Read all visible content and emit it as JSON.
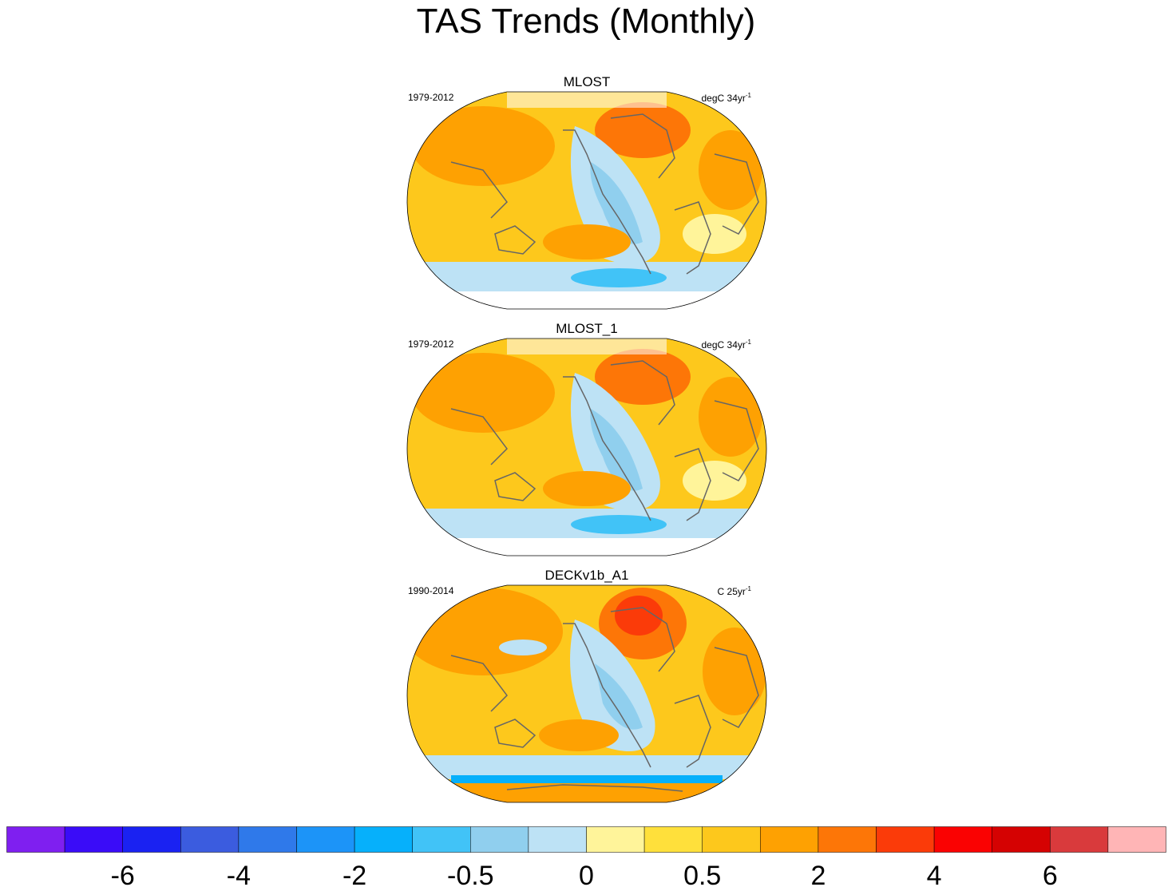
{
  "chart_data": {
    "type": "heatmap",
    "title": "TAS Trends (Monthly)",
    "projection": "Robinson (global)",
    "panels": [
      {
        "name": "MLOST",
        "period": "1979-2012",
        "units": "degC 34yr",
        "units_exponent": "-1",
        "trend_field": "warming over land and Arctic; cooling tongue in eastern tropical Pacific and Southern Ocean"
      },
      {
        "name": "MLOST_1",
        "period": "1979-2012",
        "units": "degC 34yr",
        "units_exponent": "-1",
        "trend_field": "warming over land and Arctic; cooling tongue in eastern tropical Pacific and Southern Ocean"
      },
      {
        "name": "DECKv1b_A1",
        "period": "1990-2014",
        "units": "C 25yr",
        "units_exponent": "-1",
        "trend_field": "strong warming over North America/Greenland; cooling in central Pacific and Southern Ocean ring"
      }
    ],
    "colorbar": {
      "tick_labels": [
        "-6",
        "-4",
        "-2",
        "-0.5",
        "0",
        "0.5",
        "2",
        "4",
        "6"
      ],
      "colors": [
        "#7f1ff0",
        "#3a0cf8",
        "#1a22f2",
        "#3b5cdf",
        "#2f79ea",
        "#1c94f8",
        "#06b0fb",
        "#41c3f7",
        "#90cfee",
        "#bde2f5",
        "#fff49a",
        "#ffe03b",
        "#fdc81c",
        "#fea102",
        "#fd7607",
        "#fb3b09",
        "#fa0202",
        "#d50202",
        "#d93a3c",
        "#ffb5b6"
      ]
    }
  }
}
